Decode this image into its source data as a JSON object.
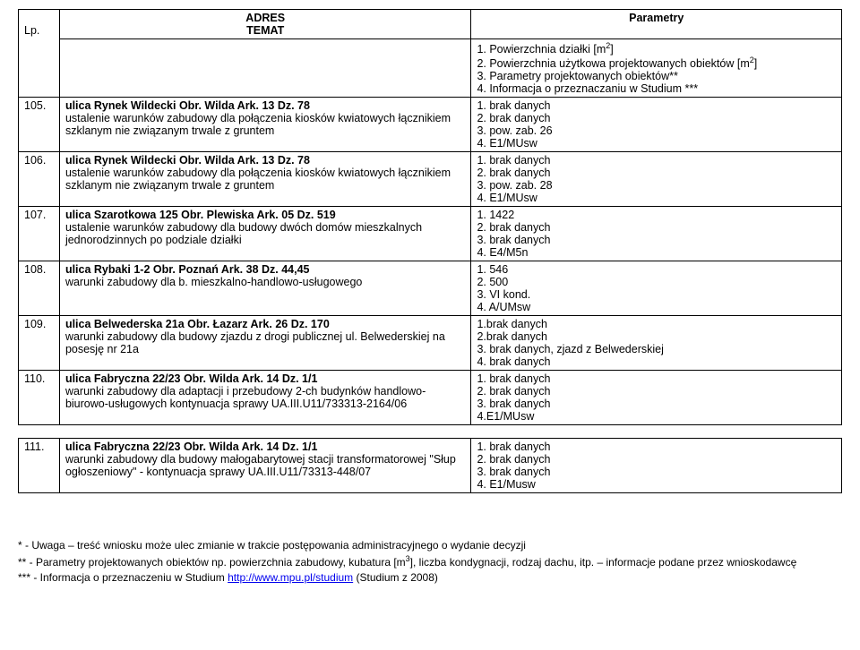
{
  "header": {
    "lp": "Lp.",
    "adres": "ADRES",
    "temat": "TEMAT",
    "parametry": "Parametry",
    "p1_pre": "1. Powierzchnia działki [m",
    "p1_sup": "2",
    "p1_post": "]",
    "p2_pre": "2. Powierzchnia użytkowa projektowanych obiektów [m",
    "p2_sup": "2",
    "p2_post": "]",
    "p3": "3. Parametry projektowanych obiektów**",
    "p4": "4. Informacja o przeznaczaniu w Studium ***"
  },
  "rows": [
    {
      "lp": "105.",
      "title": "ulica Rynek Wildecki Obr. Wilda Ark. 13 Dz. 78",
      "desc": "ustalenie warunków zabudowy dla połączenia kiosków kwiatowych łącznikiem szklanym nie związanym trwale z gruntem",
      "p1": "1. brak danych",
      "p2": "2. brak danych",
      "p3": "3. pow. zab. 26",
      "p4": "4. E1/MUsw"
    },
    {
      "lp": "106.",
      "title": "ulica Rynek Wildecki Obr. Wilda Ark. 13 Dz. 78",
      "desc": "ustalenie warunków zabudowy dla połączenia kiosków kwiatowych łącznikiem szklanym nie związanym trwale z gruntem",
      "p1": "1. brak danych",
      "p2": "2. brak danych",
      "p3": "3. pow. zab. 28",
      "p4": "4. E1/MUsw"
    },
    {
      "lp": "107.",
      "title": "ulica Szarotkowa 125 Obr. Plewiska Ark. 05 Dz. 519",
      "desc": "ustalenie warunków zabudowy dla budowy dwóch domów mieszkalnych jednorodzinnych po podziale działki",
      "p1": "1. 1422",
      "p2": "2. brak danych",
      "p3": "3. brak danych",
      "p4": "4. E4/M5n"
    },
    {
      "lp": "108.",
      "title": "ulica Rybaki 1-2 Obr. Poznań Ark. 38 Dz. 44,45",
      "desc": "warunki zabudowy dla b. mieszkalno-handlowo-usługowego",
      "p1": "1. 546",
      "p2": "2. 500",
      "p3": "3. VI kond.",
      "p4": "4. A/UMsw"
    },
    {
      "lp": "109.",
      "title": "ulica Belwederska 21a Obr. Łazarz Ark. 26 Dz. 170",
      "desc": "warunki zabudowy dla  budowy zjazdu z drogi publicznej ul. Belwederskiej na posesję nr 21a",
      "p1": "1.brak danych",
      "p2": "2.brak danych",
      "p3": "3. brak danych, zjazd z Belwederskiej",
      "p4": "4. brak danych"
    },
    {
      "lp": "110.",
      "title": "ulica Fabryczna 22/23 Obr. Wilda Ark. 14 Dz. 1/1",
      "desc": "warunki zabudowy dla adaptacji i przebudowy 2-ch budynków handlowo-biurowo-usługowych kontynuacja sprawy UA.III.U11/733313-2164/06",
      "p1": "1. brak danych",
      "p2": "2. brak danych",
      "p3": "3. brak danych",
      "p4": "4.E1/MUsw"
    }
  ],
  "rows2": [
    {
      "lp": "111.",
      "title": "ulica Fabryczna 22/23 Obr. Wilda Ark. 14 Dz. 1/1",
      "desc": "warunki zabudowy dla budowy małogabarytowej stacji transformatorowej \"Słup ogłoszeniowy\" - kontynuacja sprawy UA.III.U11/73313-448/07",
      "p1": "1. brak danych",
      "p2": "2. brak danych",
      "p3": "3. brak danych",
      "p4": "4. E1/Musw"
    }
  ],
  "notes": {
    "n1": "*     - Uwaga – treść wniosku może ulec zmianie w trakcie postępowania administracyjnego o wydanie decyzji",
    "n2_pre": "**   - Parametry projektowanych obiektów np. powierzchnia zabudowy, kubatura [m",
    "n2_sup": "3",
    "n2_post": "], liczba kondygnacji, rodzaj dachu, itp. – informacje podane przez wnioskodawcę",
    "n3_pre": "*** - Informacja o przeznaczeniu w Studium  ",
    "n3_link": "http://www.mpu.pl/studium",
    "n3_post": "  (Studium z 2008)"
  }
}
